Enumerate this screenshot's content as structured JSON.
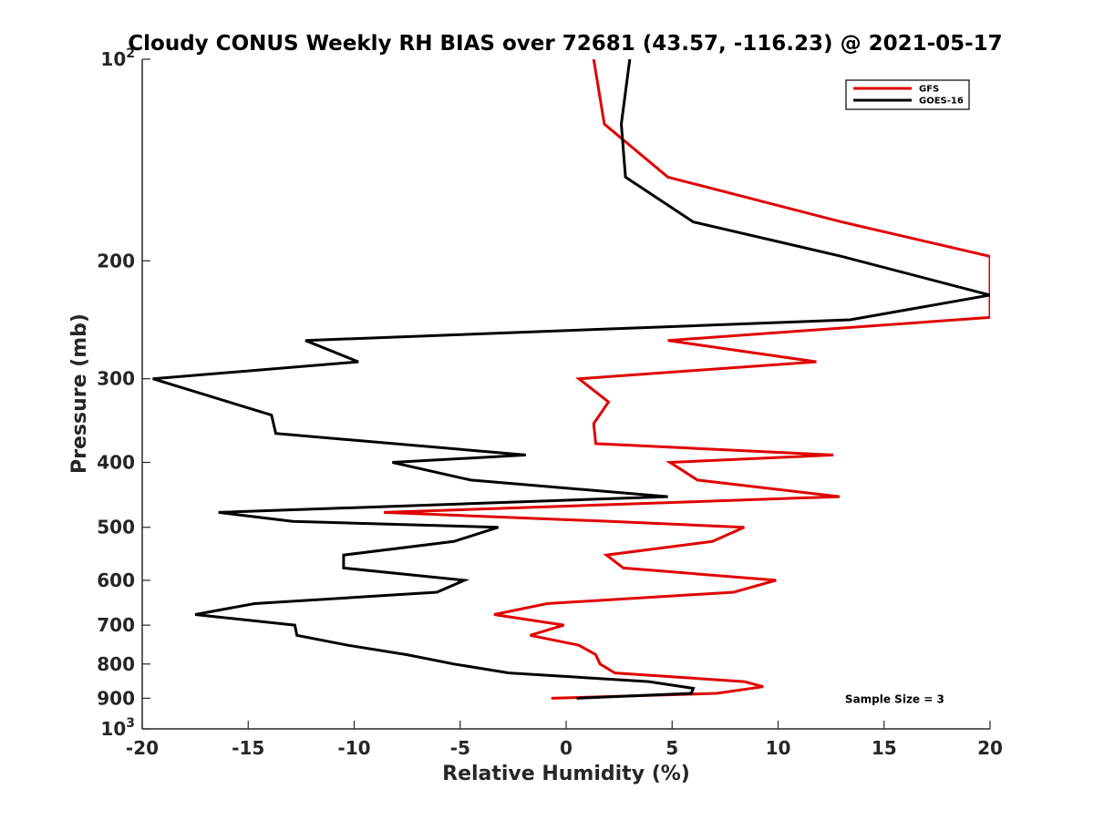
{
  "chart_data": {
    "type": "line",
    "title": "Cloudy CONUS Weekly RH BIAS over 72681 (43.57, -116.23) @ 2021-05-17",
    "xlabel": "Relative Humidity (%)",
    "ylabel": "Pressure (mb)",
    "xlim": [
      -20,
      20
    ],
    "ylim": [
      1000,
      100
    ],
    "yscale": "log",
    "xticks": [
      -20,
      -15,
      -10,
      -5,
      0,
      5,
      10,
      15,
      20
    ],
    "xtick_labels": [
      "-20",
      "-15",
      "-10",
      "-5",
      "0",
      "5",
      "10",
      "15",
      "20"
    ],
    "yticks": [
      100,
      200,
      300,
      400,
      500,
      600,
      700,
      800,
      900,
      1000
    ],
    "ytick_labels": [
      "10²",
      "200",
      "300",
      "400",
      "500",
      "600",
      "700",
      "800",
      "900",
      "10³"
    ],
    "ytick_sup_base": "10",
    "ytick_sup_top": "2",
    "ytick_sup_bottom": "3",
    "grid": false,
    "legend_position": "top-right",
    "series": [
      {
        "name": "GFS",
        "color": "#e00000",
        "points": [
          [
            1.3,
            100
          ],
          [
            1.8,
            125
          ],
          [
            4.8,
            150
          ],
          [
            13,
            175
          ],
          [
            20,
            197
          ],
          [
            20,
            243
          ],
          [
            4.8,
            263
          ],
          [
            11.8,
            283
          ],
          [
            0.6,
            300
          ],
          [
            2,
            325
          ],
          [
            1.3,
            350
          ],
          [
            1.4,
            375
          ],
          [
            12.6,
            390
          ],
          [
            4.9,
            400
          ],
          [
            6.2,
            425
          ],
          [
            12.9,
            450
          ],
          [
            -8.6,
            475
          ],
          [
            2.1,
            490
          ],
          [
            8.4,
            500
          ],
          [
            6.9,
            525
          ],
          [
            1.9,
            550
          ],
          [
            2.7,
            575
          ],
          [
            9.9,
            600
          ],
          [
            7.9,
            625
          ],
          [
            -0.9,
            650
          ],
          [
            -3.4,
            675
          ],
          [
            -0.1,
            700
          ],
          [
            -1.7,
            725
          ],
          [
            0.6,
            750
          ],
          [
            1.4,
            775
          ],
          [
            1.6,
            800
          ],
          [
            2.3,
            825
          ],
          [
            8.4,
            850
          ],
          [
            9.3,
            865
          ],
          [
            7.1,
            885
          ],
          [
            -0.7,
            900
          ]
        ]
      },
      {
        "name": "GOES-16",
        "color": "#000000",
        "points": [
          [
            3,
            100
          ],
          [
            2.6,
            125
          ],
          [
            2.8,
            150
          ],
          [
            6,
            175
          ],
          [
            13,
            197
          ],
          [
            20,
            225
          ],
          [
            13.4,
            245
          ],
          [
            -12.3,
            263
          ],
          [
            -9.8,
            283
          ],
          [
            -19.5,
            300
          ],
          [
            -13.9,
            340
          ],
          [
            -13.7,
            362
          ],
          [
            -1.9,
            390
          ],
          [
            -8.2,
            400
          ],
          [
            -4.5,
            425
          ],
          [
            4.8,
            450
          ],
          [
            -16.4,
            475
          ],
          [
            -12.9,
            490
          ],
          [
            -3.2,
            500
          ],
          [
            -5.3,
            525
          ],
          [
            -10.5,
            550
          ],
          [
            -10.5,
            575
          ],
          [
            -4.8,
            600
          ],
          [
            -6.1,
            625
          ],
          [
            -14.7,
            650
          ],
          [
            -17.5,
            675
          ],
          [
            -12.8,
            700
          ],
          [
            -12.7,
            725
          ],
          [
            -10.3,
            750
          ],
          [
            -7.5,
            775
          ],
          [
            -5.3,
            800
          ],
          [
            -2.7,
            825
          ],
          [
            3.9,
            850
          ],
          [
            6,
            870
          ],
          [
            5.9,
            885
          ],
          [
            0.5,
            900
          ]
        ]
      }
    ],
    "annotations": [
      {
        "text": "Sample Size = 3",
        "x": 15.5,
        "y": 900
      }
    ]
  }
}
